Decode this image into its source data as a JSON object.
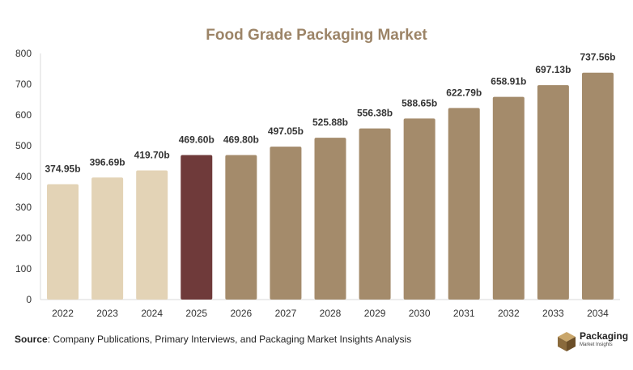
{
  "chart_data": {
    "type": "bar",
    "title": "Food Grade Packaging Market",
    "categories": [
      "2022",
      "2023",
      "2024",
      "2025",
      "2026",
      "2027",
      "2028",
      "2029",
      "2030",
      "2031",
      "2032",
      "2033",
      "2034"
    ],
    "values": [
      374.95,
      396.69,
      419.7,
      469.6,
      469.8,
      497.05,
      525.88,
      556.38,
      588.65,
      622.79,
      658.91,
      697.13,
      737.56
    ],
    "data_labels": [
      "374.95b",
      "396.69b",
      "419.70b",
      "469.60b",
      "469.80b",
      "497.05b",
      "525.88b",
      "556.38b",
      "588.65b",
      "622.79b",
      "658.91b",
      "697.13b",
      "737.56b"
    ],
    "ylim": [
      0,
      800
    ],
    "yticks": [
      0,
      100,
      200,
      300,
      400,
      500,
      600,
      700,
      800
    ],
    "grid": false,
    "colors": {
      "historical": "#e3d3b6",
      "current": "#6f3a3a",
      "forecast": "#a48b6b"
    },
    "color_groups": [
      "historical",
      "historical",
      "historical",
      "current",
      "forecast",
      "forecast",
      "forecast",
      "forecast",
      "forecast",
      "forecast",
      "forecast",
      "forecast",
      "forecast"
    ]
  },
  "footer": {
    "source_label": "Source",
    "source_text": ": Company Publications, Primary Interviews, and Packaging Market Insights Analysis"
  },
  "logo": {
    "name": "Packaging",
    "sub": "Market Insights"
  }
}
